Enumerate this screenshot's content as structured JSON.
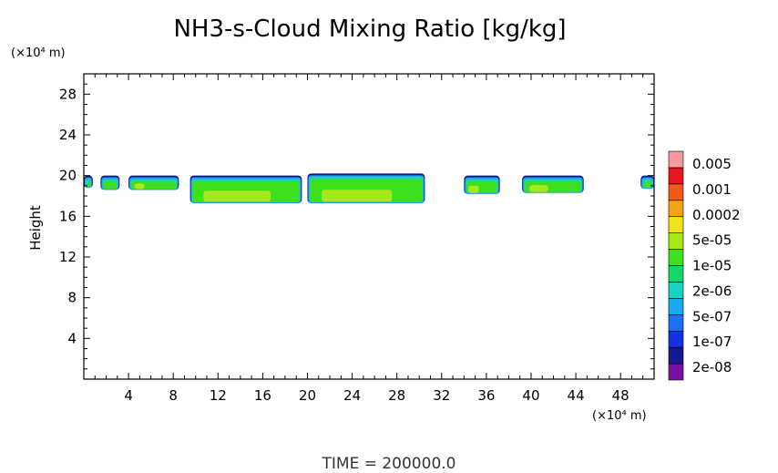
{
  "chart_data": {
    "type": "heatmap",
    "title": "NH3-s-Cloud Mixing Ratio [kg/kg]",
    "ylabel": "Height",
    "xunit": "(×10⁴ m)",
    "yunit": "(×10⁴ m)",
    "footer": "TIME = 200000.0",
    "xlim": [
      0,
      51
    ],
    "ylim": [
      0,
      30
    ],
    "xticks": [
      4,
      8,
      12,
      16,
      20,
      24,
      28,
      32,
      36,
      40,
      44,
      48
    ],
    "yticks": [
      4,
      8,
      12,
      16,
      20,
      24,
      28
    ],
    "colorbar": {
      "labels": [
        "0.005",
        "0.001",
        "0.0002",
        "5e-05",
        "1e-05",
        "2e-06",
        "5e-07",
        "1e-07",
        "2e-08"
      ],
      "colors": [
        "#7b0fa3",
        "#131a8c",
        "#1433e0",
        "#1e6ff2",
        "#1aa8f0",
        "#17d3c4",
        "#14d66a",
        "#3ee01e",
        "#a8e81a",
        "#f2e21a",
        "#f5a216",
        "#f2581a",
        "#e8161e",
        "#f79aa0"
      ]
    },
    "regions": [
      {
        "x0": 0.0,
        "x1": 0.8,
        "y0": 18.8,
        "y1": 20.0,
        "core": 0.15
      },
      {
        "x0": 1.5,
        "x1": 3.2,
        "y0": 18.6,
        "y1": 20.0,
        "core": 0.15
      },
      {
        "x0": 4.0,
        "x1": 8.5,
        "y0": 18.6,
        "y1": 20.0,
        "core": 0.2
      },
      {
        "x0": 9.5,
        "x1": 19.5,
        "y0": 17.3,
        "y1": 20.0,
        "core": 0.6
      },
      {
        "x0": 20.0,
        "x1": 30.5,
        "y0": 17.3,
        "y1": 20.2,
        "core": 0.6
      },
      {
        "x0": 34.0,
        "x1": 37.2,
        "y0": 18.2,
        "y1": 20.0,
        "core": 0.3
      },
      {
        "x0": 39.2,
        "x1": 44.7,
        "y0": 18.3,
        "y1": 20.0,
        "core": 0.3
      },
      {
        "x0": 49.8,
        "x1": 51.0,
        "y0": 18.7,
        "y1": 20.0,
        "core": 0.15
      }
    ]
  }
}
